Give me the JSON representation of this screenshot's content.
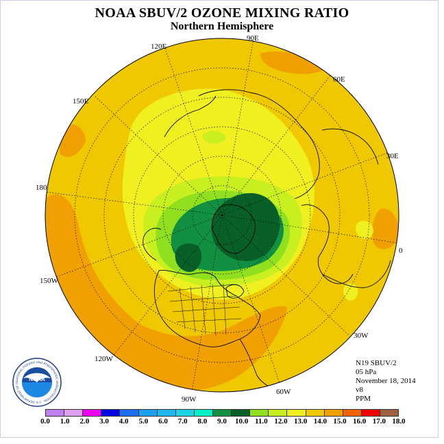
{
  "title": "NOAA SBUV/2 OZONE MIXING RATIO",
  "subtitle": "Northern Hemisphere",
  "longitude_labels": [
    {
      "id": "lon-90e",
      "text": "90E"
    },
    {
      "id": "lon-120e",
      "text": "120E"
    },
    {
      "id": "lon-60e",
      "text": "60E"
    },
    {
      "id": "lon-150e",
      "text": "150E"
    },
    {
      "id": "lon-30e",
      "text": "30E"
    },
    {
      "id": "lon-180",
      "text": "180"
    },
    {
      "id": "lon-0",
      "text": "0"
    },
    {
      "id": "lon-150w",
      "text": "150W"
    },
    {
      "id": "lon-30w",
      "text": "30W"
    },
    {
      "id": "lon-120w",
      "text": "120W"
    },
    {
      "id": "lon-60w",
      "text": "60W"
    },
    {
      "id": "lon-90w",
      "text": "90W"
    }
  ],
  "info": {
    "satellite": "N19 SBUV/2",
    "level": "05 hPa",
    "date": "November 18, 2014",
    "version": "v8",
    "units": "PPM"
  },
  "logo": {
    "text": "NOAA",
    "ring_text": "NATIONAL OCEANIC AND ATMOSPHERIC ADMINISTRATION · U.S. DEPARTMENT OF COMMERCE"
  },
  "colorbar": {
    "colors": [
      "#c080f0",
      "#e0a0f0",
      "#f000f0",
      "#0000e0",
      "#1e6ef0",
      "#1ea0f0",
      "#20b4f0",
      "#20d2e6",
      "#00f0c8",
      "#109040",
      "#086028",
      "#90e020",
      "#c8f020",
      "#f0f020",
      "#f0c800",
      "#f0a000",
      "#f06400",
      "#f00000",
      "#a06040"
    ],
    "ticks": [
      "0.0",
      "1.0",
      "2.0",
      "3.0",
      "4.0",
      "5.0",
      "6.0",
      "7.0",
      "8.0",
      "9.0",
      "10.0",
      "11.0",
      "12.0",
      "13.0",
      "14.0",
      "15.0",
      "16.0",
      "17.0",
      "18.0"
    ]
  }
}
